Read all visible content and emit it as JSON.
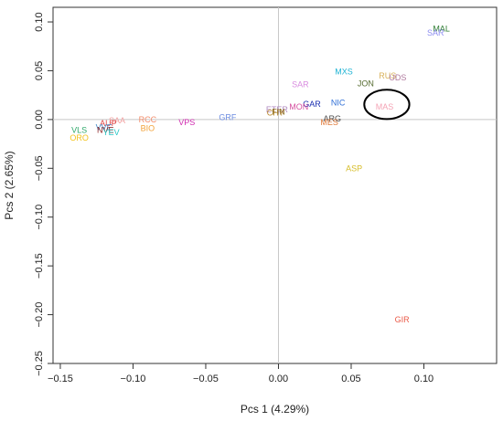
{
  "chart_data": {
    "type": "scatter",
    "title": "",
    "xlabel": "Pcs 1 (4.29%)",
    "ylabel": "Pcs 2 (2.65%)",
    "xlim": [
      -0.155,
      0.15
    ],
    "ylim": [
      -0.25,
      0.115
    ],
    "x_ticks": [
      -0.15,
      -0.1,
      -0.05,
      0.0,
      0.05,
      0.1
    ],
    "x_tick_labels": [
      "−0.15",
      "−0.10",
      "−0.05",
      "0.00",
      "0.05",
      "0.10"
    ],
    "y_ticks": [
      -0.25,
      -0.2,
      -0.15,
      -0.1,
      -0.05,
      0.0,
      0.05,
      0.1
    ],
    "y_tick_labels": [
      "−0.25",
      "−0.20",
      "−0.15",
      "−0.10",
      "−0.05",
      "0.00",
      "0.05",
      "0.10"
    ],
    "reference_lines": {
      "x": 0,
      "y": 0,
      "color": "#c8c8c8"
    },
    "points": [
      {
        "label": "MAL",
        "x": 0.112,
        "y": 0.093,
        "color": "#2e7d32"
      },
      {
        "label": "SAR",
        "x": 0.108,
        "y": 0.089,
        "color": "#8c8cf0"
      },
      {
        "label": "MXS",
        "x": 0.045,
        "y": 0.049,
        "color": "#20b4d4"
      },
      {
        "label": "RUS",
        "x": 0.075,
        "y": 0.045,
        "color": "#d9b25a"
      },
      {
        "label": "UDS",
        "x": 0.082,
        "y": 0.043,
        "color": "#b07a9e"
      },
      {
        "label": "JON",
        "x": 0.06,
        "y": 0.037,
        "color": "#556b2f"
      },
      {
        "label": "SAR",
        "x": 0.015,
        "y": 0.036,
        "color": "#d98ce0"
      },
      {
        "label": "MAS",
        "x": 0.073,
        "y": 0.013,
        "color": "#f4a3b5"
      },
      {
        "label": "NIC",
        "x": 0.041,
        "y": 0.017,
        "color": "#2f6fd6"
      },
      {
        "label": "GAR",
        "x": 0.023,
        "y": 0.016,
        "color": "#1a2fb0"
      },
      {
        "label": "MON",
        "x": 0.014,
        "y": 0.013,
        "color": "#d64fa0"
      },
      {
        "label": "ETER",
        "x": -0.001,
        "y": 0.01,
        "color": "#b08ac0"
      },
      {
        "label": "CHY",
        "x": -0.002,
        "y": 0.007,
        "color": "#b8862a"
      },
      {
        "label": "FIN",
        "x": 0.0,
        "y": 0.008,
        "color": "#8a6d1e"
      },
      {
        "label": "ARG",
        "x": 0.037,
        "y": 0.001,
        "color": "#4a4a4a"
      },
      {
        "label": "MES",
        "x": 0.035,
        "y": -0.003,
        "color": "#e07a3a"
      },
      {
        "label": "GRF",
        "x": -0.035,
        "y": 0.002,
        "color": "#6b8be0"
      },
      {
        "label": "VPS",
        "x": -0.063,
        "y": -0.003,
        "color": "#d02ab0"
      },
      {
        "label": "RCC",
        "x": -0.09,
        "y": 0.0,
        "color": "#f28c6a"
      },
      {
        "label": "BIO",
        "x": -0.09,
        "y": -0.009,
        "color": "#f2a23a"
      },
      {
        "label": "SAA",
        "x": -0.111,
        "y": -0.001,
        "color": "#f4a3a3"
      },
      {
        "label": "AUP",
        "x": -0.117,
        "y": -0.004,
        "color": "#e04848"
      },
      {
        "label": "VVE",
        "x": -0.12,
        "y": -0.008,
        "color": "#3e88c8"
      },
      {
        "label": "NVE",
        "x": -0.119,
        "y": -0.011,
        "color": "#8b1a1a"
      },
      {
        "label": "VLS",
        "x": -0.137,
        "y": -0.011,
        "color": "#2ea86a"
      },
      {
        "label": "YEV",
        "x": -0.115,
        "y": -0.013,
        "color": "#26c6c6"
      },
      {
        "label": "ORO",
        "x": -0.137,
        "y": -0.019,
        "color": "#f2c21a"
      },
      {
        "label": "ASP",
        "x": 0.052,
        "y": -0.05,
        "color": "#d6bd2a"
      },
      {
        "label": "GIR",
        "x": 0.085,
        "y": -0.205,
        "color": "#ea5a48"
      }
    ],
    "annotations": [
      {
        "type": "ellipse",
        "cx": 0.0745,
        "cy": 0.0155,
        "rx": 0.0155,
        "ry": 0.015,
        "stroke": "#000000"
      }
    ]
  }
}
